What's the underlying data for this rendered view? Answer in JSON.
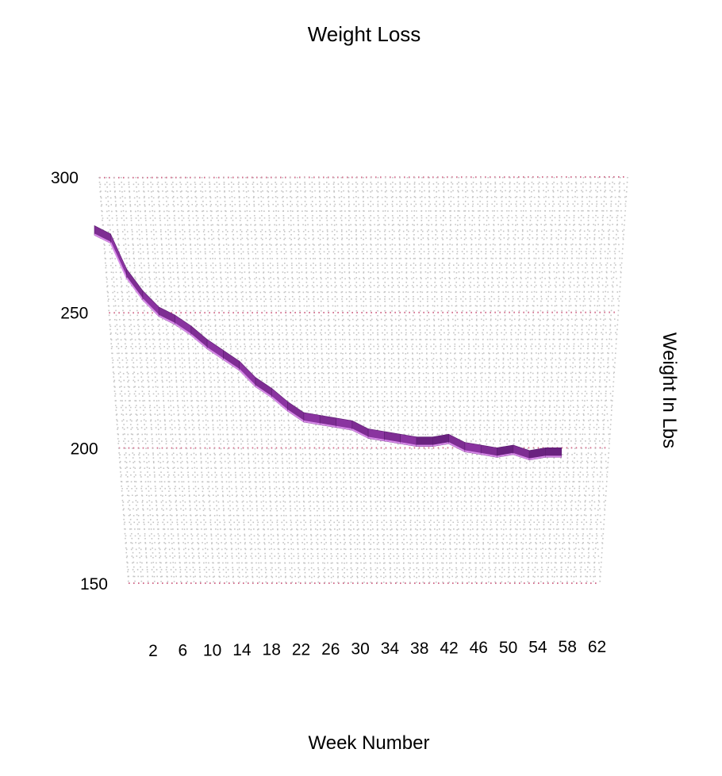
{
  "chart_data": {
    "type": "line",
    "title": "Weight Loss",
    "xlabel": "Week Number",
    "ylabel": "Weight In Lbs",
    "x_ticks": [
      "2",
      "6",
      "10",
      "14",
      "18",
      "22",
      "26",
      "30",
      "34",
      "38",
      "42",
      "46",
      "50",
      "54",
      "58",
      "62"
    ],
    "y_ticks": [
      "150",
      "200",
      "250",
      "300"
    ],
    "ylim": [
      150,
      300
    ],
    "xlim": [
      0,
      64
    ],
    "grid": true,
    "legend": "none",
    "series": [
      {
        "color": "#7b2a90",
        "x": [
          0,
          2,
          4,
          6,
          8,
          10,
          12,
          14,
          16,
          18,
          20,
          22,
          24,
          26,
          28,
          30,
          32,
          34,
          36,
          38,
          40,
          42,
          44,
          46,
          48,
          50,
          52,
          54,
          56,
          58
        ],
        "y": [
          282,
          279,
          266,
          258,
          252,
          249,
          245,
          240,
          236,
          232,
          226,
          222,
          217,
          213,
          212,
          211,
          210,
          207,
          206,
          205,
          204,
          204,
          205,
          202,
          201,
          200,
          201,
          199,
          200,
          200
        ]
      }
    ]
  }
}
